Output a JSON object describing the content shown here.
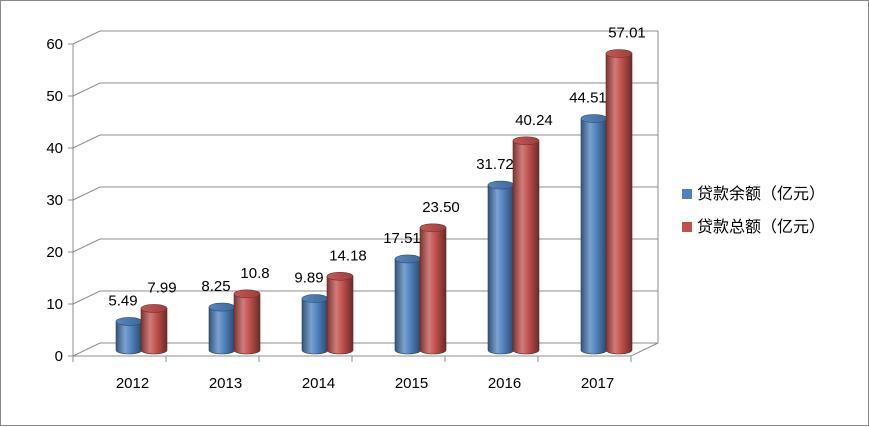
{
  "chart_data": {
    "type": "bar",
    "categories": [
      "2012",
      "2013",
      "2014",
      "2015",
      "2016",
      "2017"
    ],
    "series": [
      {
        "name": "贷款余额（亿元）",
        "values": [
          5.49,
          8.25,
          9.89,
          17.51,
          31.72,
          44.51
        ],
        "labels": [
          "5.49",
          "8.25",
          "9.89",
          "17.51",
          "31.72",
          "44.51"
        ],
        "color": "#4f81bd"
      },
      {
        "name": "贷款总额（亿元）",
        "values": [
          7.99,
          10.8,
          14.18,
          23.5,
          40.24,
          57.01
        ],
        "labels": [
          "7.99",
          "10.8",
          "14.18",
          "23.50",
          "40.24",
          "57.01"
        ],
        "color": "#c0504d"
      }
    ],
    "yticks": [
      "0",
      "10",
      "20",
      "30",
      "40",
      "50",
      "60"
    ],
    "ylim": [
      0,
      60
    ],
    "grid": true,
    "legend_position": "right",
    "style": "3d-cylinder"
  }
}
